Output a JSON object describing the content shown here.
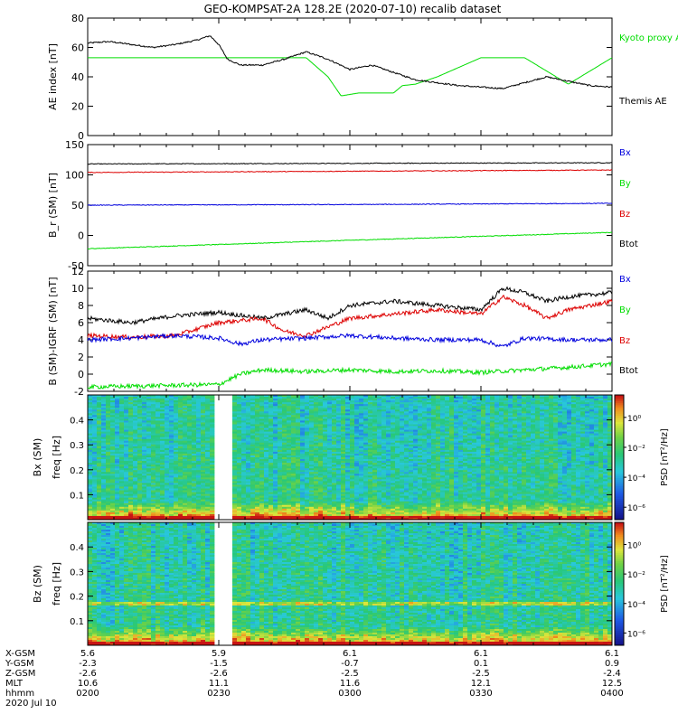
{
  "title": "GEO-KOMPSAT-2A 128.2E (2020-07-10) recalib dataset",
  "colors": {
    "black": "#000000",
    "red": "#dd0000",
    "blue": "#0000dd",
    "green": "#00dd00"
  },
  "chart_data": [
    {
      "type": "line",
      "ylabel": "AE index [nT]",
      "ylim": [
        0,
        80
      ],
      "yticks": [
        0,
        20,
        40,
        60,
        80
      ],
      "xlim": [
        0,
        120
      ],
      "series": [
        {
          "name": "Kyoto proxy AE",
          "color": "#00dd00",
          "x": [
            0,
            40,
            45,
            50,
            55,
            58,
            62,
            66,
            70,
            72,
            75,
            80,
            90,
            100,
            110,
            120
          ],
          "y": [
            53,
            53,
            53,
            53,
            40,
            27,
            29,
            29,
            29,
            34,
            35,
            40,
            53,
            53,
            35,
            53
          ]
        },
        {
          "name": "Themis AE",
          "color": "#000000",
          "x": [
            0,
            5,
            10,
            15,
            20,
            25,
            28,
            30,
            32,
            35,
            40,
            45,
            48,
            50,
            55,
            60,
            65,
            70,
            75,
            80,
            85,
            90,
            95,
            100,
            105,
            110,
            115,
            120
          ],
          "y": [
            63,
            64,
            62,
            60,
            62,
            65,
            68,
            62,
            52,
            48,
            48,
            52,
            55,
            57,
            52,
            45,
            48,
            43,
            38,
            36,
            34,
            33,
            32,
            36,
            40,
            37,
            34,
            33
          ]
        }
      ]
    },
    {
      "type": "line",
      "ylabel": "B_r (SM) [nT]",
      "ylim": [
        -50,
        150
      ],
      "yticks": [
        -50,
        0,
        50,
        100,
        150
      ],
      "xlim": [
        0,
        120
      ],
      "series": [
        {
          "name": "Bx",
          "color": "#000000",
          "x": [
            0,
            60,
            120
          ],
          "y": [
            118,
            119,
            120
          ]
        },
        {
          "name": "By",
          "color": "#00dd00",
          "x": [
            0,
            60,
            120
          ],
          "y": [
            -22,
            -8,
            5
          ]
        },
        {
          "name": "Bz",
          "color": "#dd0000",
          "x": [
            0,
            60,
            120
          ],
          "y": [
            104,
            106,
            108
          ]
        },
        {
          "name": "Btot",
          "color": "#0000dd",
          "x": [
            0,
            60,
            120
          ],
          "y": [
            50,
            51,
            53
          ]
        }
      ]
    },
    {
      "type": "line",
      "ylabel": "B (SM)-IGRF (SM) [nT]",
      "ylim": [
        -2,
        12
      ],
      "yticks": [
        -2,
        0,
        2,
        4,
        6,
        8,
        10,
        12
      ],
      "xlim": [
        0,
        120
      ],
      "series": [
        {
          "name": "Bx",
          "color": "#000000",
          "x": [
            0,
            10,
            20,
            30,
            40,
            50,
            55,
            60,
            70,
            80,
            90,
            95,
            100,
            105,
            110,
            120
          ],
          "y": [
            6.5,
            6,
            6.8,
            7.2,
            6.5,
            7.5,
            6.5,
            8,
            8.5,
            8,
            7.5,
            10,
            9.5,
            8.5,
            9,
            9.5
          ]
        },
        {
          "name": "By",
          "color": "#00dd00",
          "x": [
            0,
            20,
            30,
            35,
            40,
            50,
            60,
            70,
            80,
            90,
            100,
            110,
            120
          ],
          "y": [
            -1.5,
            -1.3,
            -1.2,
            0,
            0.5,
            0.3,
            0.5,
            0.3,
            0.4,
            0.2,
            0.5,
            0.8,
            1.2
          ]
        },
        {
          "name": "Bz",
          "color": "#dd0000",
          "x": [
            0,
            10,
            20,
            30,
            40,
            45,
            50,
            60,
            70,
            80,
            90,
            95,
            100,
            105,
            110,
            120
          ],
          "y": [
            4.5,
            4.3,
            4.5,
            6,
            6.5,
            5,
            4.5,
            6.5,
            7,
            7.5,
            7,
            9,
            8,
            6.5,
            7.5,
            8.5
          ]
        },
        {
          "name": "Btot",
          "color": "#0000dd",
          "x": [
            0,
            10,
            20,
            30,
            35,
            40,
            50,
            60,
            70,
            80,
            90,
            95,
            100,
            110,
            120
          ],
          "y": [
            4,
            4.2,
            4.5,
            4.2,
            3.5,
            4,
            4.2,
            4.5,
            4.2,
            4,
            4,
            3.2,
            4.2,
            4,
            4
          ]
        }
      ]
    },
    {
      "type": "heatmap",
      "ylabel": "Bx (SM) freq [Hz]",
      "yticks": [
        0.1,
        0.2,
        0.3,
        0.4
      ],
      "ylim": [
        0,
        0.5
      ],
      "colorbar_label": "PSD [nT²/Hz]",
      "colorbar_ticks": [
        "10⁰",
        "10⁻²",
        "10⁻⁴",
        "10⁻⁶"
      ],
      "data_gap_x": [
        29,
        33
      ]
    },
    {
      "type": "heatmap",
      "ylabel": "Bz (SM) freq [Hz]",
      "yticks": [
        0.1,
        0.2,
        0.3,
        0.4
      ],
      "ylim": [
        0,
        0.5
      ],
      "colorbar_label": "PSD [nT²/Hz]",
      "colorbar_ticks": [
        "10⁰",
        "10⁻²",
        "10⁻⁴",
        "10⁻⁶"
      ],
      "data_gap_x": [
        29,
        33
      ]
    }
  ],
  "legends": [
    [
      "Kyoto proxy AE",
      "Themis AE"
    ],
    [
      "Bx",
      "By",
      "Bz",
      "Btot"
    ],
    [
      "Bx",
      "By",
      "Bz",
      "Btot"
    ]
  ],
  "bottom_axis": {
    "row_labels": [
      "X-GSM",
      "Y-GSM",
      "Z-GSM",
      "MLT",
      "hhmm",
      "2020 Jul 10"
    ],
    "columns": [
      {
        "x": 0,
        "values": [
          "5.6",
          "-2.3",
          "-2.6",
          "10.6",
          "0200"
        ]
      },
      {
        "x": 30,
        "values": [
          "5.9",
          "-1.5",
          "-2.6",
          "11.1",
          "0230"
        ]
      },
      {
        "x": 60,
        "values": [
          "6.1",
          "-0.7",
          "-2.5",
          "11.6",
          "0300"
        ]
      },
      {
        "x": 90,
        "values": [
          "6.1",
          "0.1",
          "-2.5",
          "12.1",
          "0330"
        ]
      },
      {
        "x": 120,
        "values": [
          "6.1",
          "0.9",
          "-2.4",
          "12.5",
          "0400"
        ]
      }
    ]
  }
}
